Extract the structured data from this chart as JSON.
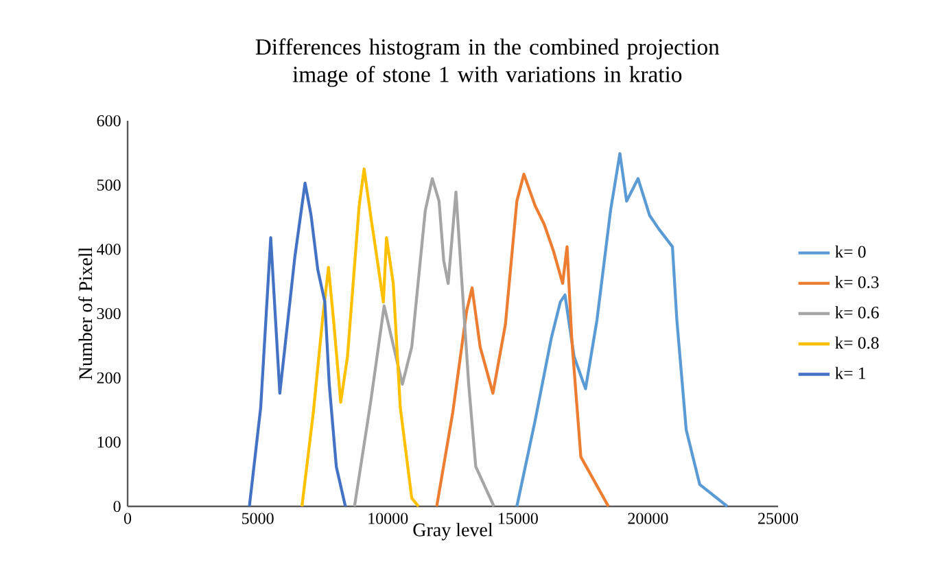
{
  "chart_data": {
    "type": "line",
    "title": "Differences histogram in the combined projection image of stone 1 with variations in kratio",
    "xlabel": "Gray level",
    "ylabel": "Number of Pixell",
    "xlim": [
      0,
      25000
    ],
    "xticks": [
      0,
      5000,
      10000,
      15000,
      20000,
      25000
    ],
    "ylim": [
      0,
      600
    ],
    "yticks": [
      0,
      100,
      200,
      300,
      400,
      500,
      600
    ],
    "legend": "right",
    "grid": false,
    "series": [
      {
        "name": "k= 0",
        "color": "#5b9bd5",
        "x": [
          14960,
          15660,
          16280,
          16630,
          16810,
          17160,
          17600,
          18040,
          18560,
          18920,
          19180,
          19620,
          20060,
          20410,
          20940,
          21110,
          21470,
          21990,
          23050
        ],
        "values": [
          0,
          133,
          261,
          318,
          329,
          233,
          183,
          290,
          460,
          549,
          475,
          510,
          453,
          432,
          404,
          290,
          119,
          34,
          0
        ]
      },
      {
        "name": "k= 0.3",
        "color": "#ed7d31",
        "x": [
          11880,
          12500,
          13030,
          13240,
          13550,
          14040,
          14520,
          14960,
          15230,
          15660,
          16010,
          16370,
          16720,
          16890,
          17070,
          17420,
          18480
        ],
        "values": [
          0,
          147,
          304,
          340,
          248,
          176,
          283,
          475,
          517,
          468,
          439,
          397,
          347,
          404,
          261,
          77,
          0
        ]
      },
      {
        "name": "k= 0.6",
        "color": "#a5a5a5",
        "x": [
          8720,
          9340,
          9860,
          10560,
          10920,
          11440,
          11710,
          11970,
          12150,
          12320,
          12620,
          12850,
          13110,
          13380,
          14080
        ],
        "values": [
          0,
          162,
          312,
          190,
          248,
          460,
          510,
          475,
          382,
          347,
          489,
          347,
          190,
          62,
          0
        ]
      },
      {
        "name": "k= 0.8",
        "color": "#ffc000",
        "x": [
          6700,
          7140,
          7490,
          7720,
          7930,
          8190,
          8450,
          8900,
          9090,
          9340,
          9600,
          9830,
          9950,
          10210,
          10480,
          10920,
          11180
        ],
        "values": [
          0,
          147,
          290,
          372,
          283,
          162,
          233,
          468,
          525,
          453,
          382,
          318,
          418,
          347,
          154,
          13,
          0
        ]
      },
      {
        "name": "k= 1",
        "color": "#4472c4",
        "x": [
          4680,
          5115,
          5500,
          5850,
          6430,
          6820,
          7050,
          7310,
          7580,
          7750,
          8020,
          8370
        ],
        "values": [
          0,
          154,
          418,
          176,
          389,
          503,
          453,
          368,
          318,
          190,
          62,
          0
        ]
      }
    ]
  }
}
